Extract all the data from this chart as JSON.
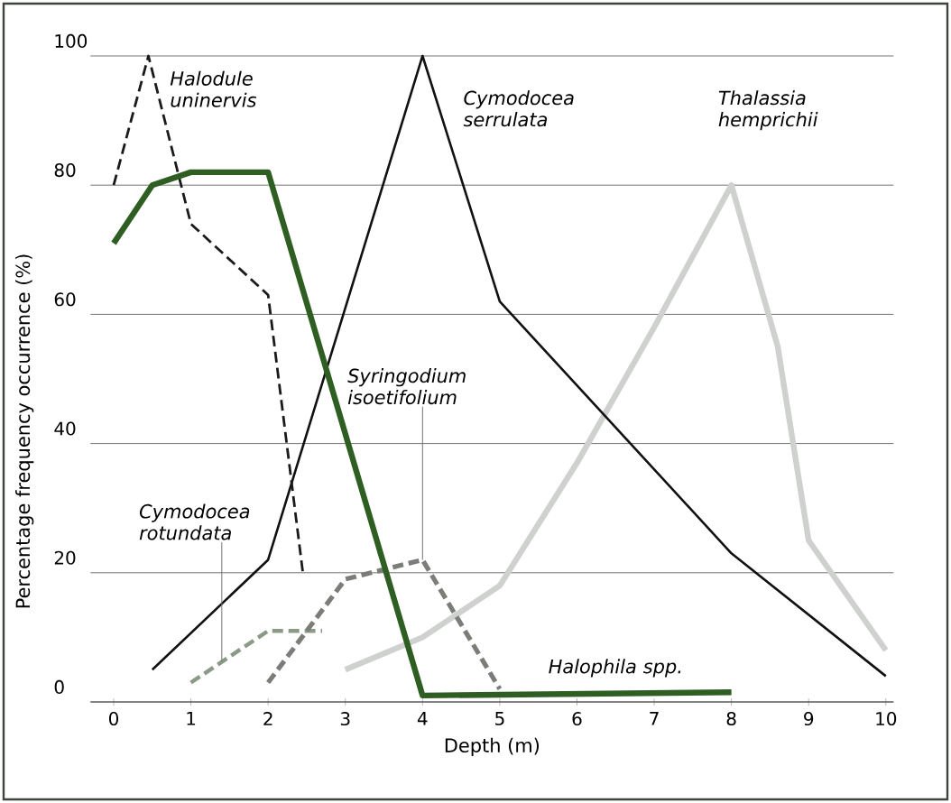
{
  "chart_data": {
    "type": "line",
    "xlabel": "Depth (m)",
    "ylabel": "Percentage frequency occurrence (%)",
    "xlim": [
      -0.3,
      10.1
    ],
    "ylim": [
      0,
      100
    ],
    "xticks": [
      0,
      1,
      2,
      3,
      4,
      5,
      6,
      7,
      8,
      9,
      10
    ],
    "yticks": [
      0,
      20,
      40,
      60,
      80,
      100
    ],
    "grid": "y",
    "marker": "none",
    "series": [
      {
        "name": "Halodule uninervis",
        "color": "#1a1a1a",
        "line_style": "dashed",
        "x": [
          0,
          0.45,
          1,
          2,
          2.45
        ],
        "values": [
          80,
          100,
          74,
          63,
          20
        ]
      },
      {
        "name": "Halophila spp.",
        "color": "#2f5e22",
        "line_style": "solid",
        "x": [
          0,
          0.5,
          1,
          2,
          4,
          8
        ],
        "values": [
          71,
          80,
          82,
          82,
          1,
          1.5
        ]
      },
      {
        "name": "Cymodocea serrulata",
        "color": "#111111",
        "line_style": "solid",
        "x": [
          0.5,
          2,
          4,
          5,
          8,
          10
        ],
        "values": [
          5,
          22,
          100,
          62,
          23,
          4
        ]
      },
      {
        "name": "Syringodium isoetifolium",
        "color": "#7a7d78",
        "line_style": "dashed",
        "x": [
          2,
          3,
          4,
          5
        ],
        "values": [
          3,
          19,
          22,
          2
        ]
      },
      {
        "name": "Cymodocea rotundata",
        "color": "#8a9a86",
        "line_style": "dashed",
        "x": [
          1,
          2,
          2.7
        ],
        "values": [
          3,
          11,
          11
        ]
      },
      {
        "name": "Thalassia hemprichii",
        "color": "#cfd1cf",
        "line_style": "solid",
        "x": [
          3,
          4,
          5,
          6,
          7,
          8,
          8.6,
          9,
          10
        ],
        "values": [
          5,
          10,
          18,
          37,
          58,
          80,
          55,
          25,
          8
        ]
      }
    ]
  }
}
